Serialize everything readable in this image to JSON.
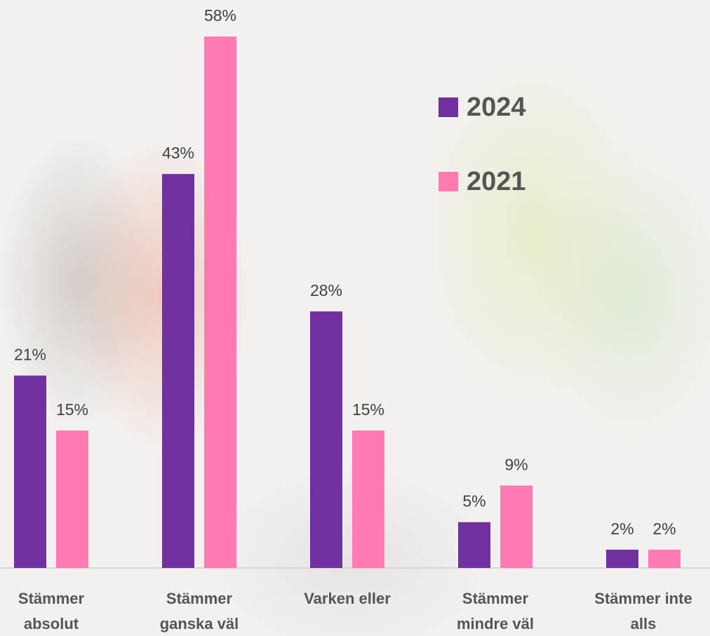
{
  "chart_data": {
    "type": "bar",
    "categories": [
      "Stämmer absolut",
      "Stämmer ganska väl",
      "Varken eller",
      "Stämmer mindre väl",
      "Stämmer inte alls"
    ],
    "series": [
      {
        "name": "2024",
        "color": "#7030a0",
        "values": [
          21,
          43,
          28,
          5,
          2
        ],
        "value_labels": [
          "21%",
          "43%",
          "28%",
          "5%",
          "2%"
        ]
      },
      {
        "name": "2021",
        "color": "#ff7bb2",
        "values": [
          15,
          58,
          15,
          9,
          2
        ],
        "value_labels": [
          "15%",
          "58%",
          "15%",
          "9%",
          "2%"
        ]
      }
    ],
    "ylim": [
      0,
      60
    ]
  }
}
